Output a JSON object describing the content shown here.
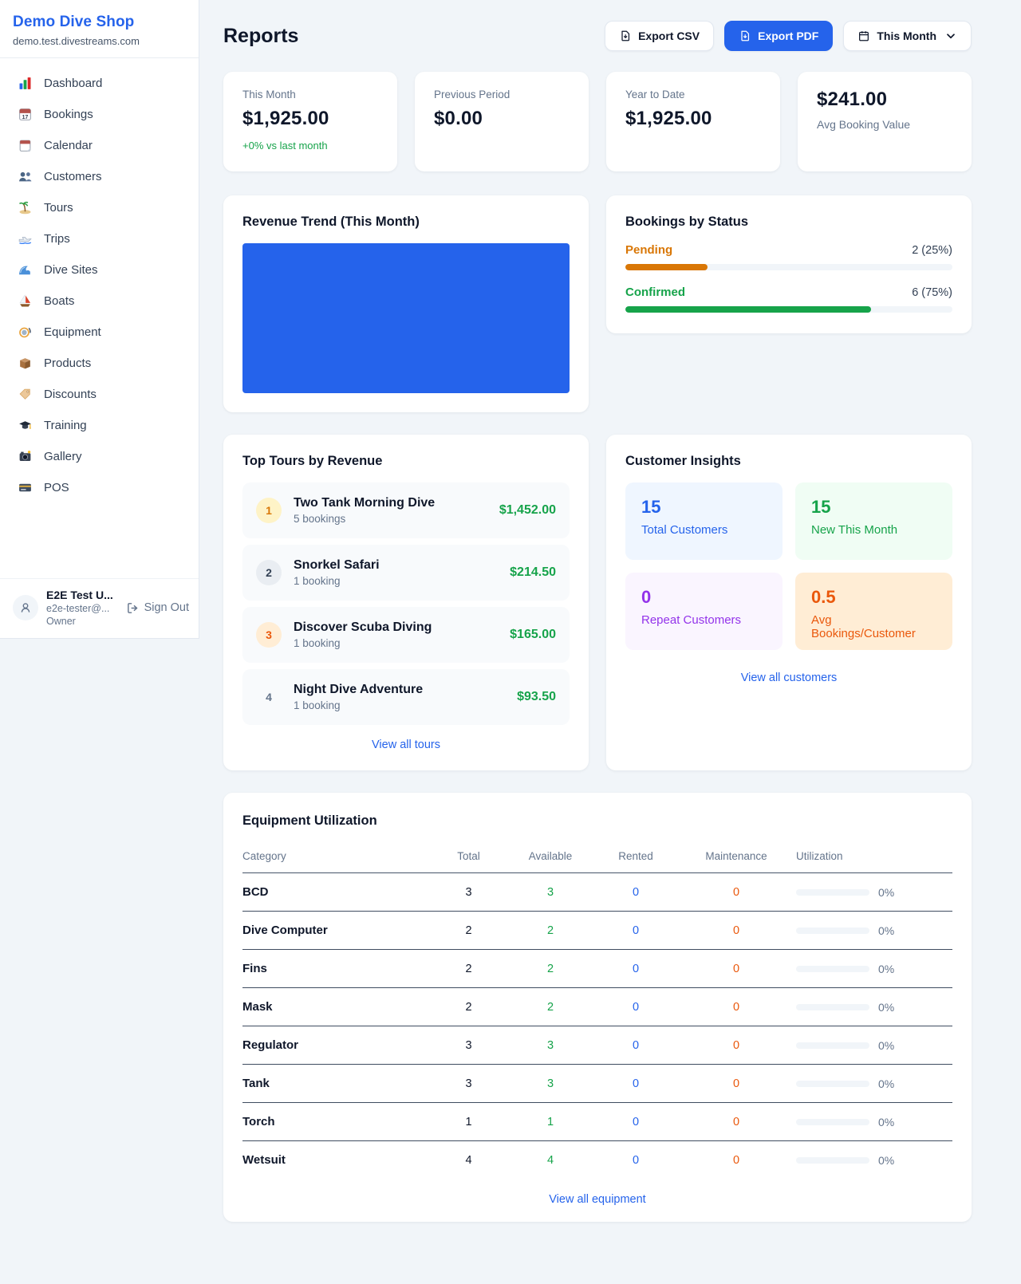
{
  "colors": {
    "accent": "#2563eb",
    "positive_green": "#16a34a",
    "pending_orange": "#d97706",
    "maintenance_orange": "#ea580c",
    "rented_blue": "#2563eb",
    "repeat_purple": "#9333ea"
  },
  "sidebar": {
    "shop_name": "Demo Dive Shop",
    "shop_domain": "demo.test.divestreams.com",
    "nav": [
      {
        "label": "Dashboard",
        "icon": "bar-chart-icon"
      },
      {
        "label": "Bookings",
        "icon": "calendar-date-icon"
      },
      {
        "label": "Calendar",
        "icon": "tear-off-calendar-icon"
      },
      {
        "label": "Customers",
        "icon": "people-icon"
      },
      {
        "label": "Tours",
        "icon": "island-icon"
      },
      {
        "label": "Trips",
        "icon": "speedboat-icon"
      },
      {
        "label": "Dive Sites",
        "icon": "wave-icon"
      },
      {
        "label": "Boats",
        "icon": "sailboat-icon"
      },
      {
        "label": "Equipment",
        "icon": "diving-mask-icon"
      },
      {
        "label": "Products",
        "icon": "package-icon"
      },
      {
        "label": "Discounts",
        "icon": "tag-icon"
      },
      {
        "label": "Training",
        "icon": "graduation-cap-icon"
      },
      {
        "label": "Gallery",
        "icon": "camera-icon"
      },
      {
        "label": "POS",
        "icon": "credit-card-icon"
      }
    ],
    "user": {
      "name": "E2E Test U...",
      "email": "e2e-tester@...",
      "role": "Owner",
      "sign_out_label": "Sign Out"
    }
  },
  "header": {
    "title": "Reports",
    "export_csv_label": "Export CSV",
    "export_pdf_label": "Export PDF",
    "period_label": "This Month"
  },
  "stats": {
    "this_month": {
      "label": "This Month",
      "value": "$1,925.00",
      "delta": "+0% vs last month"
    },
    "previous_period": {
      "label": "Previous Period",
      "value": "$0.00"
    },
    "year_to_date": {
      "label": "Year to Date",
      "value": "$1,925.00"
    },
    "avg_booking": {
      "label": "Avg Booking Value",
      "value": "$241.00"
    }
  },
  "revenue_trend": {
    "title": "Revenue Trend (This Month)",
    "bar_color": "#2563eb",
    "bar_fill": "100%"
  },
  "bookings_by_status": {
    "title": "Bookings by Status",
    "items": [
      {
        "label": "Pending",
        "count": 2,
        "count_label": "2 (25%)",
        "width": "25%"
      },
      {
        "label": "Confirmed",
        "count": 6,
        "count_label": "6 (75%)",
        "width": "75%"
      }
    ]
  },
  "top_tours": {
    "title": "Top Tours by Revenue",
    "items": [
      {
        "rank": "1",
        "name": "Two Tank Morning Dive",
        "bookings": "5 bookings",
        "revenue": "$1,452.00"
      },
      {
        "rank": "2",
        "name": "Snorkel Safari",
        "bookings": "1 booking",
        "revenue": "$214.50"
      },
      {
        "rank": "3",
        "name": "Discover Scuba Diving",
        "bookings": "1 booking",
        "revenue": "$165.00"
      },
      {
        "rank": "4",
        "name": "Night Dive Adventure",
        "bookings": "1 booking",
        "revenue": "$93.50"
      }
    ],
    "view_all_label": "View all tours"
  },
  "customer_insights": {
    "title": "Customer Insights",
    "tiles": [
      {
        "value": "15",
        "label": "Total Customers"
      },
      {
        "value": "15",
        "label": "New This Month"
      },
      {
        "value": "0",
        "label": "Repeat Customers"
      },
      {
        "value": "0.5",
        "label": "Avg Bookings/Customer"
      }
    ],
    "view_all_label": "View all customers"
  },
  "equipment": {
    "title": "Equipment Utilization",
    "headers": [
      "Category",
      "Total",
      "Available",
      "Rented",
      "Maintenance",
      "Utilization"
    ],
    "rows": [
      {
        "category": "BCD",
        "total": "3",
        "available": "3",
        "rented": "0",
        "maintenance": "0",
        "utilization": "0%",
        "util_width": "0%"
      },
      {
        "category": "Dive Computer",
        "total": "2",
        "available": "2",
        "rented": "0",
        "maintenance": "0",
        "utilization": "0%",
        "util_width": "0%"
      },
      {
        "category": "Fins",
        "total": "2",
        "available": "2",
        "rented": "0",
        "maintenance": "0",
        "utilization": "0%",
        "util_width": "0%"
      },
      {
        "category": "Mask",
        "total": "2",
        "available": "2",
        "rented": "0",
        "maintenance": "0",
        "utilization": "0%",
        "util_width": "0%"
      },
      {
        "category": "Regulator",
        "total": "3",
        "available": "3",
        "rented": "0",
        "maintenance": "0",
        "utilization": "0%",
        "util_width": "0%"
      },
      {
        "category": "Tank",
        "total": "3",
        "available": "3",
        "rented": "0",
        "maintenance": "0",
        "utilization": "0%",
        "util_width": "0%"
      },
      {
        "category": "Torch",
        "total": "1",
        "available": "1",
        "rented": "0",
        "maintenance": "0",
        "utilization": "0%",
        "util_width": "0%"
      },
      {
        "category": "Wetsuit",
        "total": "4",
        "available": "4",
        "rented": "0",
        "maintenance": "0",
        "utilization": "0%",
        "util_width": "0%"
      }
    ],
    "view_all_label": "View all equipment"
  }
}
